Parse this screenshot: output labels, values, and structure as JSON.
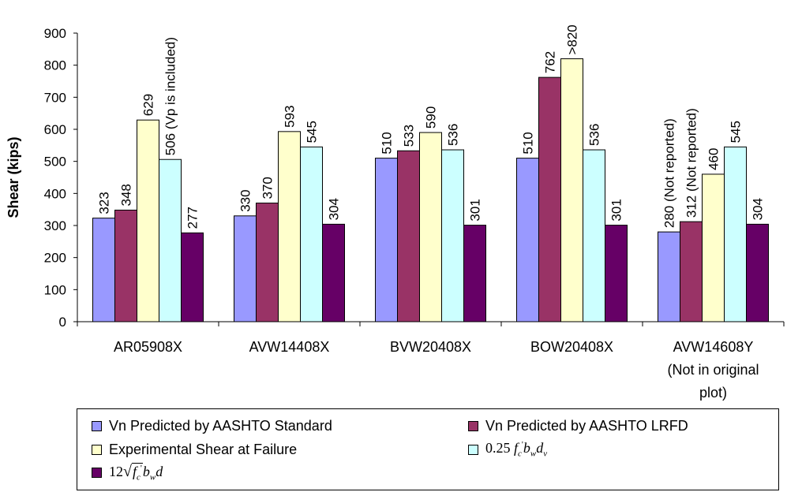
{
  "chart_data": {
    "type": "bar",
    "ylabel": "Shear (kips)",
    "ylim": [
      0,
      900
    ],
    "yticks": [
      "0",
      "100",
      "200",
      "300",
      "400",
      "500",
      "600",
      "700",
      "800",
      "900"
    ],
    "categories": [
      {
        "line1": "AR05908X"
      },
      {
        "line1": "AVW14408X"
      },
      {
        "line1": "BVW20408X"
      },
      {
        "line1": "BOW20408X"
      },
      {
        "line1": "AVW14608Y",
        "line2": "(Not in original",
        "line3": "plot)"
      }
    ],
    "series": [
      {
        "name": "Vn Predicted by AASHTO Standard",
        "color": "#9999FF",
        "values": [
          323,
          330,
          510,
          510,
          280
        ],
        "labels": [
          "323",
          "330",
          "510",
          "510",
          "280 (Not reported)"
        ]
      },
      {
        "name": "Vn Predicted by AASHTO LRFD",
        "color": "#993366",
        "values": [
          348,
          370,
          533,
          762,
          312
        ],
        "labels": [
          "348",
          "370",
          "533",
          "762",
          "312 (Not reported)"
        ]
      },
      {
        "name": "Experimental Shear at Failure",
        "color": "#FFFFCC",
        "values": [
          629,
          593,
          590,
          820,
          460
        ],
        "labels": [
          "629",
          "593",
          "590",
          ">820",
          "460"
        ]
      },
      {
        "name": "0.25 f'c bw dv",
        "color": "#CCFFFF",
        "values": [
          506,
          545,
          536,
          536,
          545
        ],
        "labels": [
          "506 (Vp is included)",
          "545",
          "536",
          "536",
          "545"
        ]
      },
      {
        "name": "12 √f'c bw d",
        "color": "#660066",
        "values": [
          277,
          304,
          301,
          301,
          304
        ],
        "labels": [
          "277",
          "304",
          "301",
          "301",
          "304"
        ]
      }
    ],
    "legend_position": "bottom",
    "grid": false
  },
  "legend": {
    "item1": "Vn Predicted by AASHTO Standard",
    "item2": "Vn Predicted by AASHTO LRFD",
    "item3": "Experimental Shear at Failure",
    "item4_coef": "0.25",
    "item4_f": "f",
    "item4_c": "c",
    "item4_b": "b",
    "item4_w": "w",
    "item4_d": "d",
    "item4_v": "v",
    "item5_coef": "12",
    "item5_f": "f",
    "item5_c": "c",
    "item5_b": "b",
    "item5_w": "w",
    "item5_d": "d"
  }
}
